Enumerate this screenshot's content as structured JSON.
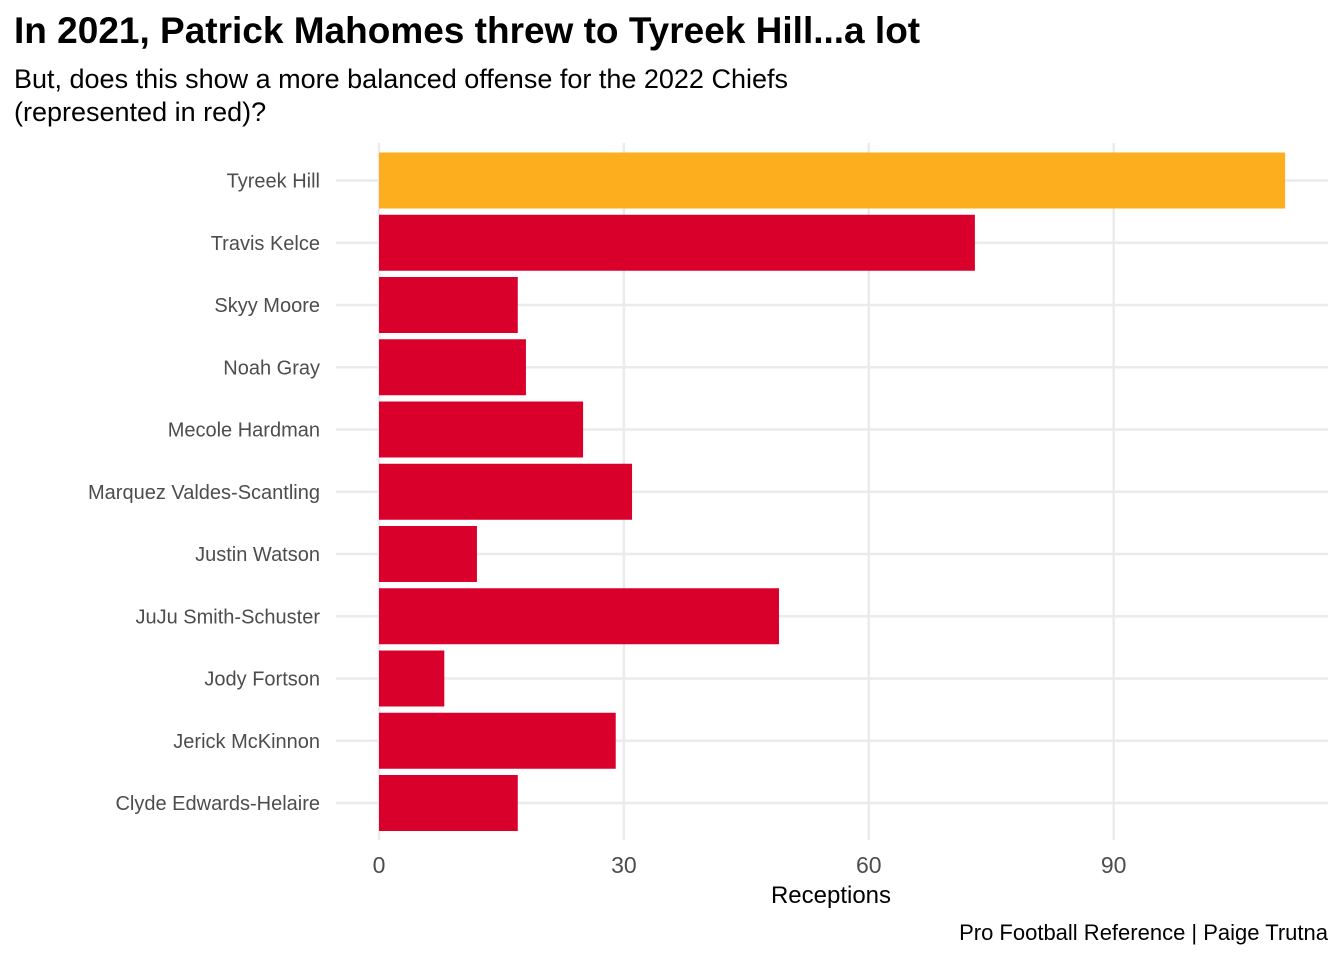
{
  "chart_data": {
    "type": "bar",
    "orientation": "horizontal",
    "title": "In 2021, Patrick Mahomes threw to Tyreek Hill...a lot",
    "subtitle": "But, does this show a more balanced offense for the 2022 Chiefs (represented in red)?",
    "caption": "Pro Football Reference | Paige Trutna",
    "xlabel": "Receptions",
    "ylabel": "",
    "xlim": [
      0,
      116
    ],
    "xticks": [
      0,
      30,
      60,
      90
    ],
    "grid": true,
    "legend": "none",
    "categories": [
      "Tyreek Hill",
      "Travis Kelce",
      "Skyy Moore",
      "Noah Gray",
      "Mecole Hardman",
      "Marquez Valdes-Scantling",
      "Justin Watson",
      "JuJu Smith-Schuster",
      "Jody Fortson",
      "Jerick McKinnon",
      "Clyde Edwards-Helaire"
    ],
    "values": [
      111,
      73,
      17,
      18,
      25,
      31,
      12,
      49,
      8,
      29,
      17
    ],
    "colors": [
      "#FDAE1E",
      "#D9002B",
      "#D9002B",
      "#D9002B",
      "#D9002B",
      "#D9002B",
      "#D9002B",
      "#D9002B",
      "#D9002B",
      "#D9002B",
      "#D9002B"
    ]
  },
  "colors": {
    "hill": "#FDAE1E",
    "chiefs_2022": "#D9002B",
    "grid": "#EBEBEB",
    "axis_text": "#4D4D4D"
  }
}
